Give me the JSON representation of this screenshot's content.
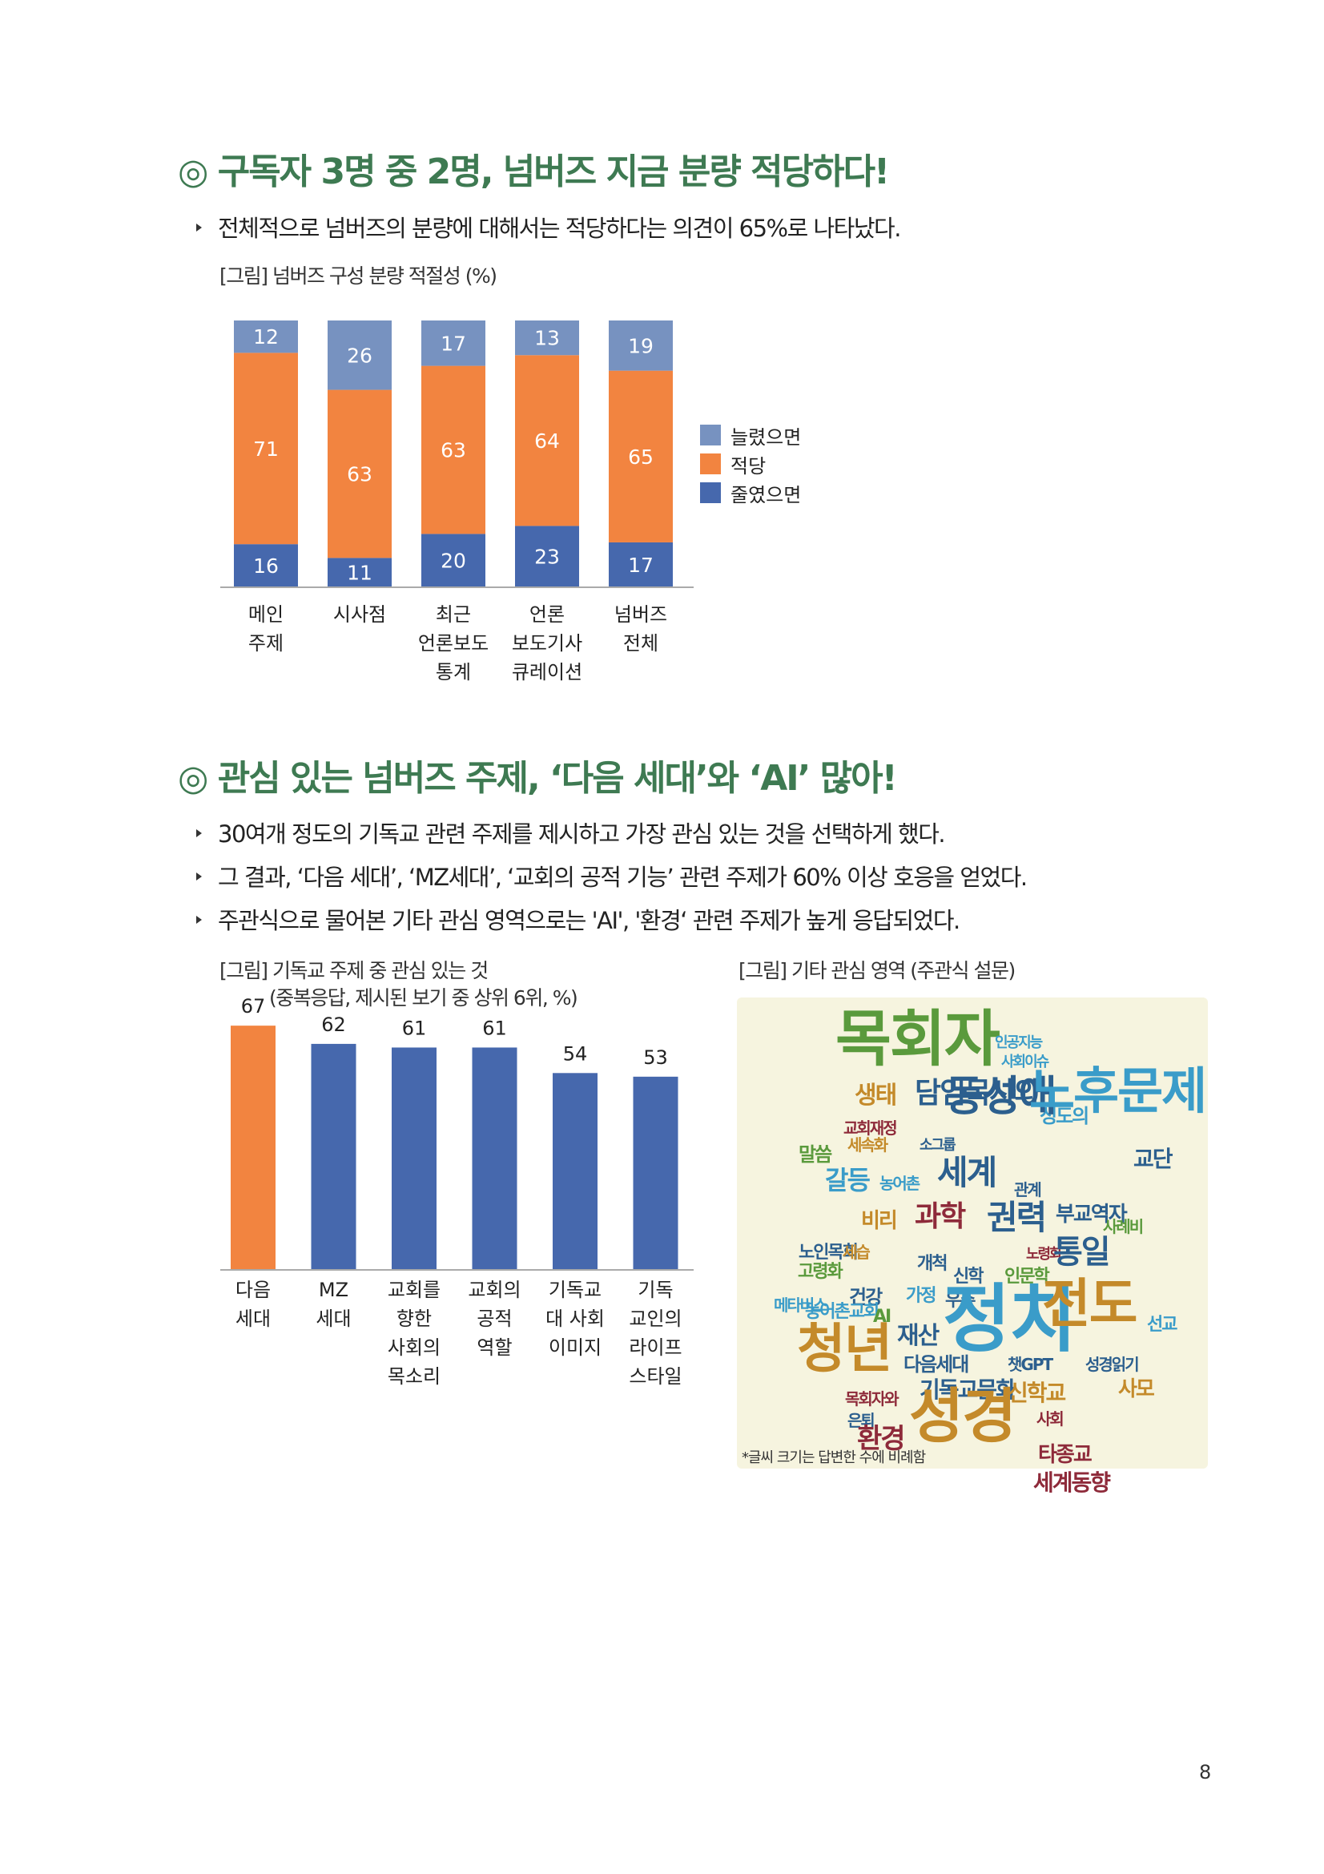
{
  "section1": {
    "title": "◎ 구독자 3명 중 2명, 넘버즈 지금 분량 적당하다!",
    "bullet": "전체적으로 넘버즈의 분량에 대해서는 적당하다는 의견이 65%로 나타났다.",
    "figure_caption": "[그림] 넘버즈 구성 분량 적절성 (%)"
  },
  "section2": {
    "title": "◎ 관심 있는 넘버즈 주제, ‘다음 세대’와 ‘AI’ 많아!",
    "bullets": [
      "30여개 정도의 기독교 관련 주제를 제시하고 가장 관심 있는 것을 선택하게 했다.",
      "그 결과, ‘다음 세대’, ‘MZ세대’, ‘교회의 공적 기능’ 관련 주제가 60% 이상 호응을 얻었다.",
      "주관식으로 물어본 기타 관심 영역으로는 'AI', '환경‘ 관련 주제가 높게 응답되었다."
    ],
    "figure_caption_1": "[그림] 기독교 주제 중 관심 있는 것",
    "figure_caption_1_sub": "(중복응답, 제시된 보기 중 상위 6위, %)",
    "figure_caption_2": "[그림] 기타 관심 영역 (주관식 설문)",
    "wordcloud_note": "*글씨 크기는 답변한 수에 비례함"
  },
  "colors": {
    "title_green": "#3e7a52",
    "orange": "#f28440",
    "blue": "#4668ad",
    "light_blue": "#7792c0"
  },
  "chart_data": [
    {
      "type": "bar",
      "stacked": true,
      "categories": [
        [
          "메인",
          "주제"
        ],
        [
          "시사점"
        ],
        [
          "최근",
          "언론보도",
          "통계"
        ],
        [
          "언론",
          "보도기사",
          "큐레이션"
        ],
        [
          "넘버즈",
          "전체"
        ]
      ],
      "series": [
        {
          "name": "줄였으면",
          "color": "#4668ad",
          "values": [
            16,
            11,
            20,
            23,
            17
          ]
        },
        {
          "name": "적당",
          "color": "#f28440",
          "values": [
            71,
            63,
            63,
            64,
            65
          ]
        },
        {
          "name": "늘렸으면",
          "color": "#7792c0",
          "values": [
            12,
            26,
            17,
            13,
            19
          ]
        }
      ],
      "legend_order": [
        "늘렸으면",
        "적당",
        "줄였으면"
      ],
      "legend": "right",
      "ylim": [
        0,
        100
      ],
      "grid": false
    },
    {
      "type": "bar",
      "categories": [
        [
          "다음",
          "세대"
        ],
        [
          "MZ",
          "세대"
        ],
        [
          "교회를",
          "향한",
          "사회의",
          "목소리"
        ],
        [
          "교회의",
          "공적",
          "역할"
        ],
        [
          "기독교",
          "대 사회",
          "이미지"
        ],
        [
          "기독",
          "교인의",
          "라이프",
          "스타일"
        ]
      ],
      "values": [
        67,
        62,
        61,
        61,
        54,
        53
      ],
      "colors": [
        "#f28440",
        "#4668ad",
        "#4668ad",
        "#4668ad",
        "#4668ad",
        "#4668ad"
      ],
      "ylim": [
        0,
        70
      ],
      "grid": false
    }
  ],
  "wordcloud": [
    {
      "text": "목회자",
      "color": "#5a9a3c"
    },
    {
      "text": "인공지능",
      "color": "#3a9cc9"
    },
    {
      "text": "사회이슈",
      "color": "#3a9cc9"
    },
    {
      "text": "생태",
      "color": "#c48a2a"
    },
    {
      "text": "담임목사와",
      "color": "#2c5f8e"
    },
    {
      "text": "성도의",
      "color": "#3a9cc9"
    },
    {
      "text": "동성애",
      "color": "#2c5f8e"
    },
    {
      "text": "노후문제",
      "color": "#3a9cc9"
    },
    {
      "text": "교회재정",
      "color": "#8e2a3a"
    },
    {
      "text": "세속화",
      "color": "#c48a2a"
    },
    {
      "text": "소그룹",
      "color": "#2c5f8e"
    },
    {
      "text": "말씀",
      "color": "#5a9a3c"
    },
    {
      "text": "갈등",
      "color": "#3a9cc9"
    },
    {
      "text": "농어촌",
      "color": "#3a9cc9"
    },
    {
      "text": "세계",
      "color": "#2c5f8e"
    },
    {
      "text": "교단",
      "color": "#2c5f8e"
    },
    {
      "text": "관계",
      "color": "#2c5f8e"
    },
    {
      "text": "비리",
      "color": "#c48a2a"
    },
    {
      "text": "과학",
      "color": "#8e2a3a"
    },
    {
      "text": "권력",
      "color": "#2c5f8e"
    },
    {
      "text": "부교역자",
      "color": "#2c5f8e"
    },
    {
      "text": "사례비",
      "color": "#5a9a3c"
    },
    {
      "text": "노인목회",
      "color": "#2c5f8e"
    },
    {
      "text": "세습",
      "color": "#c48a2a"
    },
    {
      "text": "개척",
      "color": "#2c5f8e"
    },
    {
      "text": "노령화",
      "color": "#8e2a3a"
    },
    {
      "text": "통일",
      "color": "#2c5f8e"
    },
    {
      "text": "고령화",
      "color": "#5a9a3c"
    },
    {
      "text": "신학",
      "color": "#2c5f8e"
    },
    {
      "text": "인문학",
      "color": "#5a9a3c"
    },
    {
      "text": "건강",
      "color": "#2c5f8e"
    },
    {
      "text": "가정",
      "color": "#3a9cc9"
    },
    {
      "text": "우주",
      "color": "#2c5f8e"
    },
    {
      "text": "메타버스",
      "color": "#3a9cc9"
    },
    {
      "text": "농어촌교회",
      "color": "#3a9cc9"
    },
    {
      "text": "AI",
      "color": "#5a9a3c"
    },
    {
      "text": "정치",
      "color": "#3a9cc9"
    },
    {
      "text": "전도",
      "color": "#c48a2a"
    },
    {
      "text": "선교",
      "color": "#3a9cc9"
    },
    {
      "text": "청년",
      "color": "#c48a2a"
    },
    {
      "text": "재산",
      "color": "#2c5f8e"
    },
    {
      "text": "다음세대",
      "color": "#2c5f8e"
    },
    {
      "text": "챗GPT",
      "color": "#2c5f8e"
    },
    {
      "text": "성경읽기",
      "color": "#2c5f8e"
    },
    {
      "text": "목회자와",
      "color": "#8e2a3a"
    },
    {
      "text": "기독교문화",
      "color": "#2c5f8e"
    },
    {
      "text": "신학교",
      "color": "#c48a2a"
    },
    {
      "text": "사모",
      "color": "#c48a2a"
    },
    {
      "text": "은퇴",
      "color": "#2c5f8e"
    },
    {
      "text": "사회",
      "color": "#8e2a3a"
    },
    {
      "text": "환경",
      "color": "#8e2a3a"
    },
    {
      "text": "성경",
      "color": "#c48a2a"
    },
    {
      "text": "타종교",
      "color": "#8e2a3a"
    },
    {
      "text": "세계동향",
      "color": "#8e2a3a"
    }
  ],
  "page_number": "8"
}
